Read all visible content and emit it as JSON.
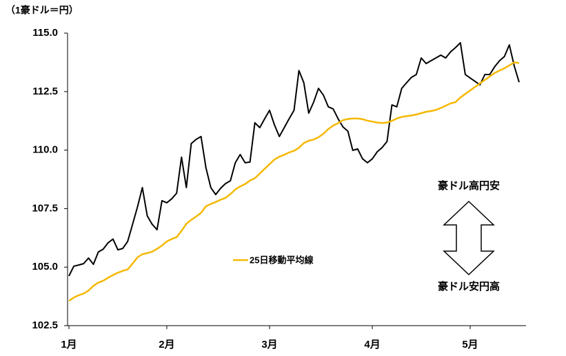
{
  "chart_data": {
    "type": "line",
    "axis_label": "（1豪ドル＝円）",
    "annotations": [
      "豪ドル高円安",
      "豪ドル安円高"
    ],
    "categories": [
      "1月",
      null,
      null,
      null,
      null,
      null,
      null,
      null,
      null,
      null,
      null,
      null,
      null,
      null,
      null,
      null,
      null,
      null,
      null,
      null,
      "2月",
      null,
      null,
      null,
      null,
      null,
      null,
      null,
      null,
      null,
      null,
      null,
      null,
      null,
      null,
      null,
      null,
      null,
      null,
      null,
      null,
      "3月",
      null,
      null,
      null,
      null,
      null,
      null,
      null,
      null,
      null,
      null,
      null,
      null,
      null,
      null,
      null,
      null,
      null,
      null,
      null,
      null,
      "4月",
      null,
      null,
      null,
      null,
      null,
      null,
      null,
      null,
      null,
      null,
      null,
      null,
      null,
      null,
      null,
      null,
      null,
      null,
      null,
      "5月",
      null,
      null,
      null,
      null,
      null,
      null,
      null,
      null,
      null,
      null
    ],
    "series": [
      {
        "color": "#000000",
        "values": [
          104.62,
          105.04,
          105.09,
          105.15,
          105.39,
          105.12,
          105.65,
          105.77,
          106.04,
          106.2,
          105.74,
          105.8,
          106.1,
          106.83,
          107.57,
          108.4,
          107.19,
          106.83,
          106.6,
          107.84,
          107.75,
          107.92,
          108.16,
          109.7,
          108.4,
          110.28,
          110.46,
          110.58,
          109.25,
          108.4,
          108.1,
          108.37,
          108.57,
          108.69,
          109.46,
          109.81,
          109.46,
          109.49,
          111.17,
          110.96,
          111.34,
          111.7,
          111.08,
          110.58,
          110.96,
          111.34,
          111.7,
          113.4,
          112.88,
          111.58,
          112.05,
          112.64,
          112.35,
          111.85,
          111.76,
          111.34,
          110.99,
          110.81,
          109.99,
          110.05,
          109.63,
          109.46,
          109.63,
          109.93,
          110.11,
          110.37,
          111.93,
          111.85,
          112.64,
          112.88,
          113.11,
          113.23,
          113.94,
          113.7,
          113.82,
          113.94,
          114.06,
          113.94,
          114.2,
          114.38,
          114.59,
          113.23,
          113.08,
          112.94,
          112.79,
          113.23,
          113.23,
          113.56,
          113.82,
          114.0,
          114.5,
          113.6,
          112.9
        ]
      },
      {
        "name": "25日移動平均線",
        "color": "#f5b800",
        "values": [
          103.56,
          103.7,
          103.8,
          103.87,
          104.0,
          104.2,
          104.34,
          104.42,
          104.55,
          104.66,
          104.76,
          104.84,
          104.9,
          105.15,
          105.42,
          105.55,
          105.6,
          105.66,
          105.78,
          105.92,
          106.1,
          106.2,
          106.28,
          106.55,
          106.85,
          107.02,
          107.16,
          107.32,
          107.6,
          107.7,
          107.78,
          107.88,
          107.96,
          108.12,
          108.32,
          108.45,
          108.55,
          108.7,
          108.8,
          109.0,
          109.2,
          109.4,
          109.6,
          109.72,
          109.8,
          109.9,
          109.97,
          110.1,
          110.3,
          110.4,
          110.45,
          110.55,
          110.7,
          110.9,
          111.05,
          111.15,
          111.28,
          111.33,
          111.35,
          111.35,
          111.32,
          111.26,
          111.22,
          111.18,
          111.16,
          111.18,
          111.25,
          111.35,
          111.42,
          111.45,
          111.48,
          111.52,
          111.58,
          111.64,
          111.67,
          111.72,
          111.8,
          111.9,
          112.0,
          112.05,
          112.25,
          112.4,
          112.55,
          112.7,
          112.85,
          113.0,
          113.15,
          113.3,
          113.4,
          113.5,
          113.62,
          113.75,
          113.72
        ]
      }
    ],
    "ylim": [
      102.5,
      115
    ],
    "yticks": [
      102.5,
      {
        "value": 105,
        "label": "105.0"
      },
      107.5,
      {
        "value": 110,
        "label": "110.0"
      },
      112.5,
      {
        "value": 115,
        "label": "115.0"
      }
    ],
    "grid": false
  }
}
